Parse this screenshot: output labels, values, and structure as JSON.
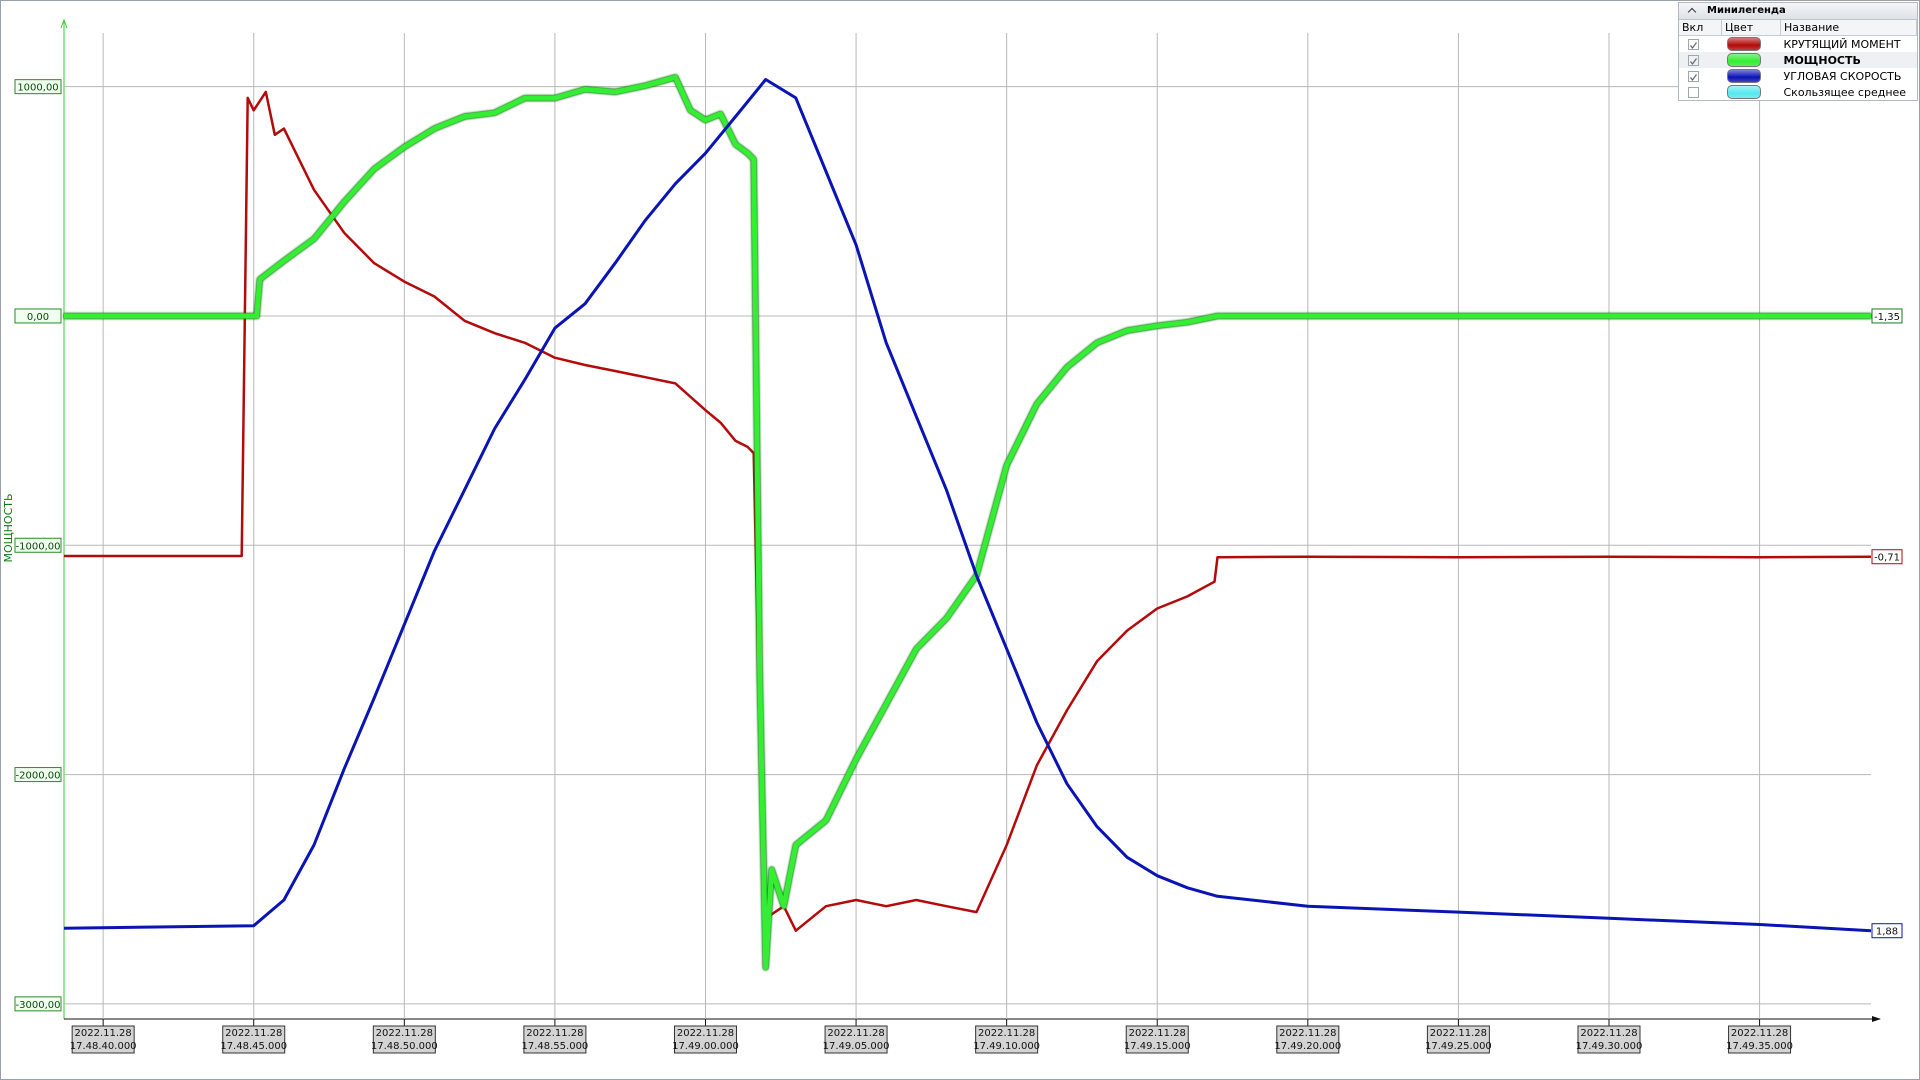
{
  "chart_data": {
    "type": "line",
    "y_label": "МОЩНОСТЬ",
    "legend": {
      "title": "Минилегенда",
      "headers": [
        "Вкл",
        "Цвет",
        "Название"
      ],
      "highlighted_series": 1,
      "corner": "top-right"
    },
    "xlim": [
      "2022-11-28T17:48:38.700",
      "2022-11-28T17:49:38.700"
    ],
    "xticks": [
      {
        "value": "2022-11-28T17:48:40.000",
        "label": [
          "2022.11.28",
          "17.48.40.000"
        ]
      },
      {
        "value": "2022-11-28T17:48:45.000",
        "label": [
          "2022.11.28",
          "17.48.45.000"
        ]
      },
      {
        "value": "2022-11-28T17:48:50.000",
        "label": [
          "2022.11.28",
          "17.48.50.000"
        ]
      },
      {
        "value": "2022-11-28T17:48:55.000",
        "label": [
          "2022.11.28",
          "17.48.55.000"
        ]
      },
      {
        "value": "2022-11-28T17:49:00.000",
        "label": [
          "2022.11.28",
          "17.49.00.000"
        ]
      },
      {
        "value": "2022-11-28T17:49:05.000",
        "label": [
          "2022.11.28",
          "17.49.05.000"
        ]
      },
      {
        "value": "2022-11-28T17:49:10.000",
        "label": [
          "2022.11.28",
          "17.49.10.000"
        ]
      },
      {
        "value": "2022-11-28T17:49:15.000",
        "label": [
          "2022.11.28",
          "17.49.15.000"
        ]
      },
      {
        "value": "2022-11-28T17:49:20.000",
        "label": [
          "2022.11.28",
          "17.49.20.000"
        ]
      },
      {
        "value": "2022-11-28T17:49:25.000",
        "label": [
          "2022.11.28",
          "17.49.25.000"
        ]
      },
      {
        "value": "2022-11-28T17:49:30.000",
        "label": [
          "2022.11.28",
          "17.49.30.000"
        ]
      },
      {
        "value": "2022-11-28T17:49:35.000",
        "label": [
          "2022.11.28",
          "17.49.35.000"
        ]
      }
    ],
    "ylim": [
      -3066,
      1234
    ],
    "yticks": [
      {
        "value": 1000,
        "label": "1000,00"
      },
      {
        "value": 0,
        "label": "0,00"
      },
      {
        "value": -1000,
        "label": "-1000,00"
      },
      {
        "value": -2000,
        "label": "-2000,00"
      },
      {
        "value": -3000,
        "label": "-3000,00"
      }
    ],
    "grid": true,
    "series": [
      {
        "name": "КРУТЯЩИЙ МОМЕНТ",
        "color": "#b30a0a",
        "enabled": true,
        "end_label": "-0,71",
        "x": [
          "2022-11-28T17:48:38.700",
          "2022-11-28T17:48:44.600",
          "2022-11-28T17:48:44.800",
          "2022-11-28T17:48:45.000",
          "2022-11-28T17:48:45.400",
          "2022-11-28T17:48:45.700",
          "2022-11-28T17:48:46.000",
          "2022-11-28T17:48:47.000",
          "2022-11-28T17:48:48.000",
          "2022-11-28T17:48:49.000",
          "2022-11-28T17:48:50.000",
          "2022-11-28T17:48:51.000",
          "2022-11-28T17:48:52.000",
          "2022-11-28T17:48:53.000",
          "2022-11-28T17:48:54.000",
          "2022-11-28T17:48:55.000",
          "2022-11-28T17:48:56.000",
          "2022-11-28T17:48:57.000",
          "2022-11-28T17:48:58.000",
          "2022-11-28T17:48:59.000",
          "2022-11-28T17:49:00.000",
          "2022-11-28T17:49:00.500",
          "2022-11-28T17:49:01.000",
          "2022-11-28T17:49:01.400",
          "2022-11-28T17:49:01.600",
          "2022-11-28T17:49:01.800",
          "2022-11-28T17:49:02.000",
          "2022-11-28T17:49:02.600",
          "2022-11-28T17:49:03.000",
          "2022-11-28T17:49:04.000",
          "2022-11-28T17:49:05.000",
          "2022-11-28T17:49:06.000",
          "2022-11-28T17:49:07.000",
          "2022-11-28T17:49:08.000",
          "2022-11-28T17:49:09.000",
          "2022-11-28T17:49:10.000",
          "2022-11-28T17:49:11.000",
          "2022-11-28T17:49:12.000",
          "2022-11-28T17:49:13.000",
          "2022-11-28T17:49:14.000",
          "2022-11-28T17:49:15.000",
          "2022-11-28T17:49:16.000",
          "2022-11-28T17:49:16.900",
          "2022-11-28T17:49:17.000",
          "2022-11-28T17:49:20.000",
          "2022-11-28T17:49:25.000",
          "2022-11-28T17:49:30.000",
          "2022-11-28T17:49:35.000",
          "2022-11-28T17:49:38.700"
        ],
        "values": [
          -1047,
          -1047,
          951,
          897,
          977,
          790,
          817,
          550,
          363,
          230,
          150,
          85,
          -21,
          -75,
          -117,
          -182,
          -214,
          -240,
          -267,
          -294,
          -411,
          -465,
          -545,
          -571,
          -598,
          -1826,
          -2627,
          -2574,
          -2681,
          -2574,
          -2547,
          -2574,
          -2547,
          -2574,
          -2600,
          -2307,
          -1960,
          -1720,
          -1506,
          -1372,
          -1276,
          -1223,
          -1159,
          -1052,
          -1050,
          -1052,
          -1050,
          -1052,
          -1050
        ]
      },
      {
        "name": "МОЩНОСТЬ",
        "color": "#33ee33",
        "enabled": true,
        "end_label": "-1,35",
        "x": [
          "2022-11-28T17:48:38.700",
          "2022-11-28T17:48:45.100",
          "2022-11-28T17:48:45.200",
          "2022-11-28T17:48:46.000",
          "2022-11-28T17:48:47.000",
          "2022-11-28T17:48:48.000",
          "2022-11-28T17:48:49.000",
          "2022-11-28T17:48:50.000",
          "2022-11-28T17:48:51.000",
          "2022-11-28T17:48:52.000",
          "2022-11-28T17:48:53.000",
          "2022-11-28T17:48:54.000",
          "2022-11-28T17:48:55.000",
          "2022-11-28T17:48:56.000",
          "2022-11-28T17:48:57.000",
          "2022-11-28T17:48:58.000",
          "2022-11-28T17:48:59.000",
          "2022-11-28T17:48:59.500",
          "2022-11-28T17:49:00.000",
          "2022-11-28T17:49:00.500",
          "2022-11-28T17:49:01.000",
          "2022-11-28T17:49:01.400",
          "2022-11-28T17:49:01.600",
          "2022-11-28T17:49:01.800",
          "2022-11-28T17:49:02.000",
          "2022-11-28T17:49:02.200",
          "2022-11-28T17:49:02.600",
          "2022-11-28T17:49:03.000",
          "2022-11-28T17:49:04.000",
          "2022-11-28T17:49:05.000",
          "2022-11-28T17:49:06.000",
          "2022-11-28T17:49:07.000",
          "2022-11-28T17:49:08.000",
          "2022-11-28T17:49:09.000",
          "2022-11-28T17:49:10.000",
          "2022-11-28T17:49:11.000",
          "2022-11-28T17:49:12.000",
          "2022-11-28T17:49:13.000",
          "2022-11-28T17:49:14.000",
          "2022-11-28T17:49:15.000",
          "2022-11-28T17:49:16.000",
          "2022-11-28T17:49:17.000",
          "2022-11-28T17:49:38.700"
        ],
        "values": [
          0,
          0,
          160,
          240,
          336,
          497,
          641,
          737,
          817,
          870,
          886,
          950,
          950,
          988,
          977,
          1004,
          1041,
          897,
          854,
          881,
          748,
          710,
          683,
          -1559,
          -2841,
          -2414,
          -2574,
          -2307,
          -2200,
          -1933,
          -1693,
          -1452,
          -1319,
          -1132,
          -651,
          -384,
          -224,
          -117,
          -64,
          -43,
          -27,
          0,
          0
        ]
      },
      {
        "name": "УГЛОВАЯ СКОРОСТЬ",
        "color": "#0a14b4",
        "enabled": true,
        "end_label": "1,88",
        "x": [
          "2022-11-28T17:48:38.700",
          "2022-11-28T17:48:45.000",
          "2022-11-28T17:48:46.000",
          "2022-11-28T17:48:47.000",
          "2022-11-28T17:48:48.000",
          "2022-11-28T17:48:49.000",
          "2022-11-28T17:48:50.000",
          "2022-11-28T17:48:51.000",
          "2022-11-28T17:48:52.000",
          "2022-11-28T17:48:53.000",
          "2022-11-28T17:48:54.000",
          "2022-11-28T17:48:55.000",
          "2022-11-28T17:48:56.000",
          "2022-11-28T17:48:57.000",
          "2022-11-28T17:48:58.000",
          "2022-11-28T17:48:59.000",
          "2022-11-28T17:49:00.000",
          "2022-11-28T17:49:01.000",
          "2022-11-28T17:49:02.000",
          "2022-11-28T17:49:03.000",
          "2022-11-28T17:49:04.000",
          "2022-11-28T17:49:05.000",
          "2022-11-28T17:49:06.000",
          "2022-11-28T17:49:07.000",
          "2022-11-28T17:49:08.000",
          "2022-11-28T17:49:09.000",
          "2022-11-28T17:49:10.000",
          "2022-11-28T17:49:11.000",
          "2022-11-28T17:49:12.000",
          "2022-11-28T17:49:13.000",
          "2022-11-28T17:49:14.000",
          "2022-11-28T17:49:15.000",
          "2022-11-28T17:49:16.000",
          "2022-11-28T17:49:17.000",
          "2022-11-28T17:49:20.000",
          "2022-11-28T17:49:25.000",
          "2022-11-28T17:49:30.000",
          "2022-11-28T17:49:35.000",
          "2022-11-28T17:49:38.700"
        ],
        "values": [
          -2670,
          -2659,
          -2547,
          -2307,
          -1976,
          -1666,
          -1346,
          -1025,
          -758,
          -491,
          -278,
          -53,
          53,
          230,
          417,
          577,
          710,
          870,
          1031,
          951,
          630,
          310,
          -117,
          -438,
          -758,
          -1132,
          -1452,
          -1773,
          -2040,
          -2227,
          -2361,
          -2441,
          -2494,
          -2531,
          -2574,
          -2600,
          -2627,
          -2654,
          -2681
        ]
      },
      {
        "name": "Скользящее среднее",
        "color": "#55e8ee",
        "enabled": false,
        "x": [],
        "values": []
      }
    ]
  }
}
